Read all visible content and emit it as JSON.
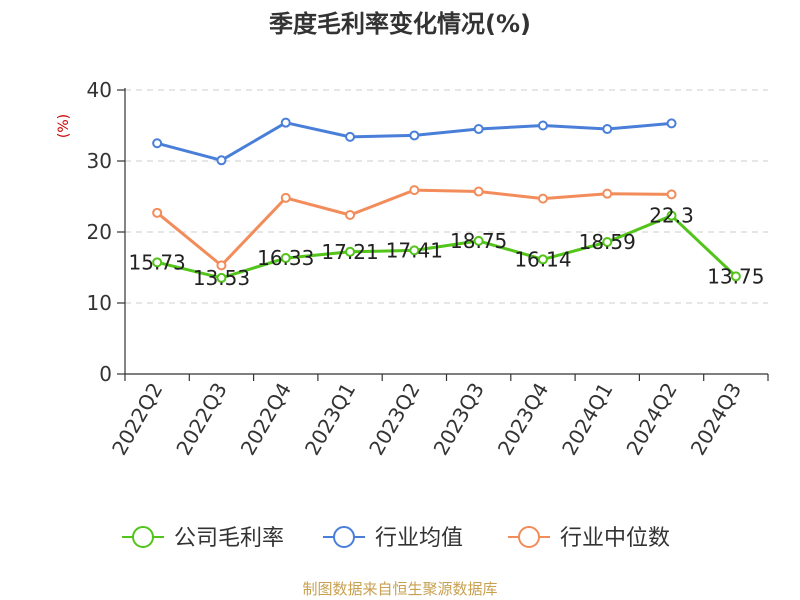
{
  "chart_data": {
    "type": "line",
    "title": "季度毛利率变化情况(%)",
    "unit_label": "(%)",
    "categories": [
      "2022Q2",
      "2022Q3",
      "2022Q4",
      "2023Q1",
      "2023Q2",
      "2023Q3",
      "2023Q4",
      "2024Q1",
      "2024Q2",
      "2024Q3"
    ],
    "ylim": [
      0,
      40
    ],
    "yticks": [
      0,
      10,
      20,
      30,
      40
    ],
    "grid": true,
    "legend_position": "bottom",
    "series": [
      {
        "name": "公司毛利率",
        "color": "#52c41a",
        "values": [
          15.73,
          13.53,
          16.33,
          17.21,
          17.41,
          18.75,
          16.14,
          18.59,
          22.3,
          13.75
        ],
        "labels": [
          "15.73",
          "13.53",
          "16.33",
          "17.21",
          "17.41",
          "18.75",
          "16.14",
          "18.59",
          "22.3",
          "13.75"
        ]
      },
      {
        "name": "行业均值",
        "color": "#4a7fd9",
        "values": [
          32.5,
          30.1,
          35.4,
          33.4,
          33.6,
          34.5,
          35.0,
          34.5,
          35.3,
          null
        ]
      },
      {
        "name": "行业中位数",
        "color": "#f28c5a",
        "values": [
          22.7,
          15.3,
          24.8,
          22.4,
          25.9,
          25.7,
          24.7,
          25.4,
          25.3,
          null
        ]
      }
    ],
    "source": "制图数据来自恒生聚源数据库"
  }
}
